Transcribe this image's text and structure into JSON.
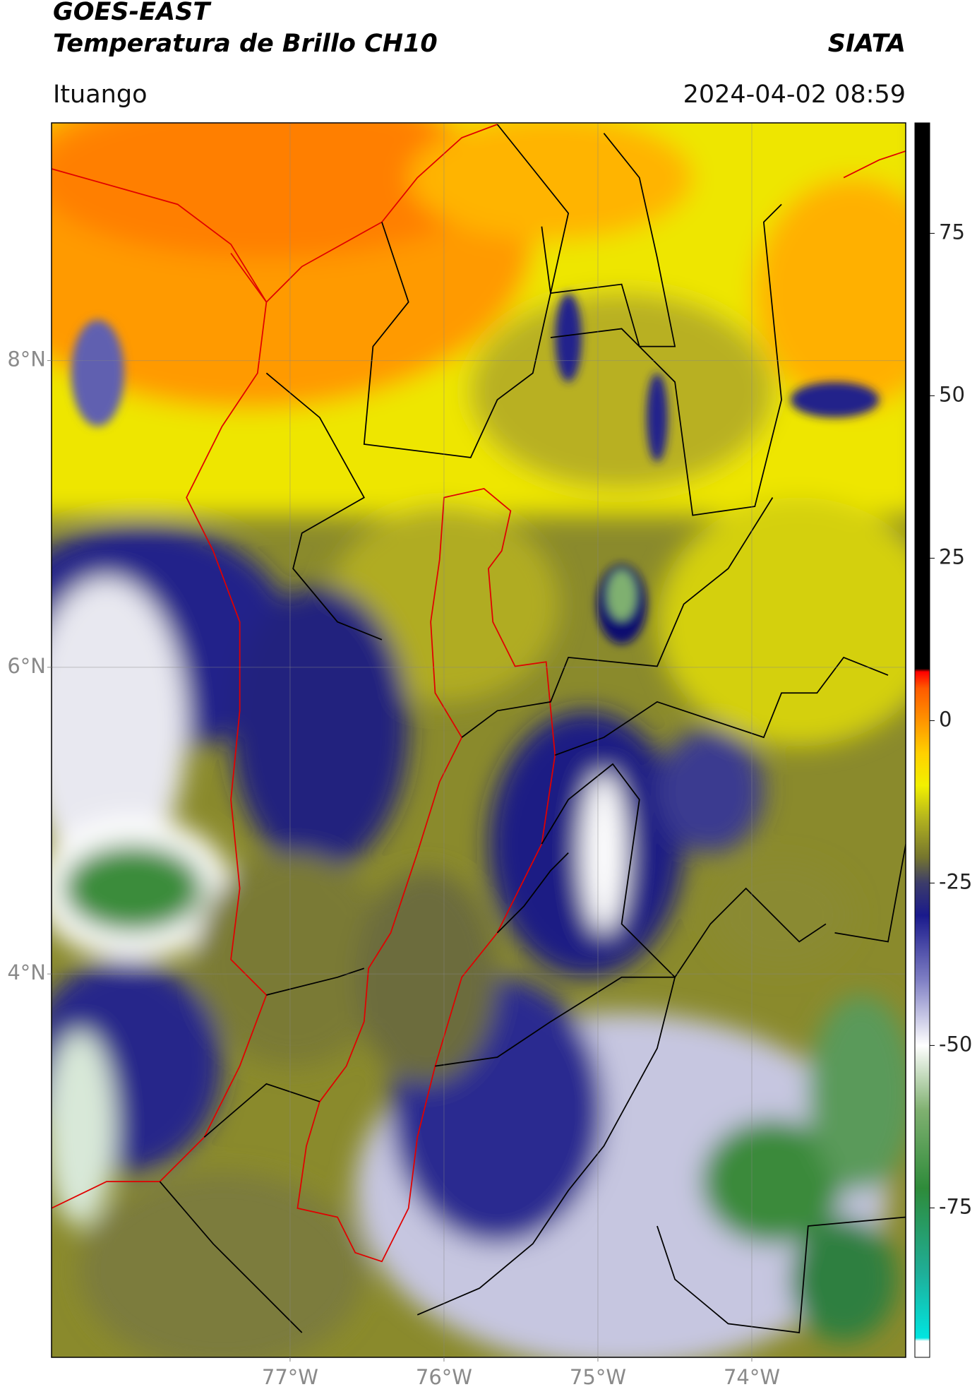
{
  "header": {
    "title": "GOES-EAST",
    "subtitle": "Temperatura de Brillo CH10",
    "source": "SIATA",
    "location": "Ituango",
    "datetime": "2024-04-02 08:59"
  },
  "map": {
    "xlim": [
      -78.55,
      -73.0
    ],
    "ylim": [
      1.5,
      9.55
    ],
    "grid": true,
    "xticks": [
      {
        "value": -77,
        "label": "77°W"
      },
      {
        "value": -76,
        "label": "76°W"
      },
      {
        "value": -75,
        "label": "75°W"
      },
      {
        "value": -74,
        "label": "74°W"
      }
    ],
    "yticks": [
      {
        "value": 8,
        "label": "8°N"
      },
      {
        "value": 6,
        "label": "6°N"
      },
      {
        "value": 4,
        "label": "4°N"
      }
    ]
  },
  "colorbar": {
    "lim": [
      -98,
      92
    ],
    "ticks": [
      75,
      50,
      25,
      0,
      -25,
      -50,
      -75
    ],
    "stops": [
      [
        -98,
        "#ffffff"
      ],
      [
        -95.5,
        "#ffffff"
      ],
      [
        -95,
        "#00e5e0"
      ],
      [
        -85,
        "#1fae98"
      ],
      [
        -72,
        "#2e8b3a"
      ],
      [
        -60,
        "#7fb070"
      ],
      [
        -50,
        "#ffffff"
      ],
      [
        -40,
        "#8080c4"
      ],
      [
        -30,
        "#1a1a8c"
      ],
      [
        -25,
        "#3c3c6a"
      ],
      [
        -21,
        "#76762e"
      ],
      [
        -15,
        "#b4b41e"
      ],
      [
        -10,
        "#f2f000"
      ],
      [
        -5,
        "#ffd000"
      ],
      [
        0,
        "#ff9400"
      ],
      [
        5,
        "#ff5a00"
      ],
      [
        7.5,
        "#ff0000"
      ],
      [
        8,
        "#000000"
      ],
      [
        92,
        "#000000"
      ]
    ]
  }
}
